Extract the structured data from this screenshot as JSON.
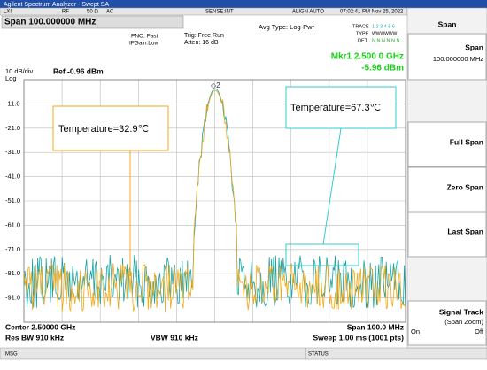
{
  "window": {
    "title": "Agilent Spectrum Analyzer - Swept SA"
  },
  "status_row": {
    "rf": "RF",
    "impedance": "50 Ω",
    "coupling": "AC",
    "sense": "SENSE:INT",
    "align": "ALIGN AUTO",
    "datetime": "07:02:41 PM Nov 25, 2022"
  },
  "settings": {
    "span": "Span 100.000000 MHz",
    "pno": "PNO: Fast",
    "ifgain": "IFGain:Low",
    "trig": "Trig: Free Run",
    "atten": "Atten: 16 dB",
    "avg_type": "Avg Type: Log-Pwr",
    "trace_label": "TRACE",
    "trace_nums": "1 2 3 4 5 6",
    "type_label": "TYPE",
    "type_val": "WWWWWW",
    "det_label": "DET",
    "det_val": "N N N N N N"
  },
  "marker": {
    "freq": "Mkr1 2.500 0 GHz",
    "level": "-5.96 dBm"
  },
  "scale": {
    "div": "10 dB/div",
    "ref": "Ref -0.96 dBm",
    "log": "Log",
    "labels": [
      "-11.0",
      "-21.0",
      "-31.0",
      "-41.0",
      "-51.0",
      "-61.0",
      "-71.0",
      "-81.0",
      "-91.0"
    ]
  },
  "annotations": [
    "Temperature=32.9℃",
    "Temperature=67.3℃"
  ],
  "footer": {
    "center": "Center 2.50000 GHz",
    "span": "Span 100.0 MHz",
    "rbw": "Res BW 910 kHz",
    "vbw": "VBW 910 kHz",
    "sweep": "Sweep  1.00 ms (1001 pts)"
  },
  "statusbar": {
    "msg": "MSG",
    "status": "STATUS"
  },
  "softkeys": {
    "header": "Span",
    "items": [
      {
        "label": "Span",
        "value": "100.000000 MHz"
      },
      {
        "label": "Full Span"
      },
      {
        "label": "Zero Span"
      },
      {
        "label": "Last Span"
      },
      {
        "label": "Signal Track",
        "sub": "(Span Zoom)",
        "on": "On",
        "off": "Off"
      }
    ]
  }
}
